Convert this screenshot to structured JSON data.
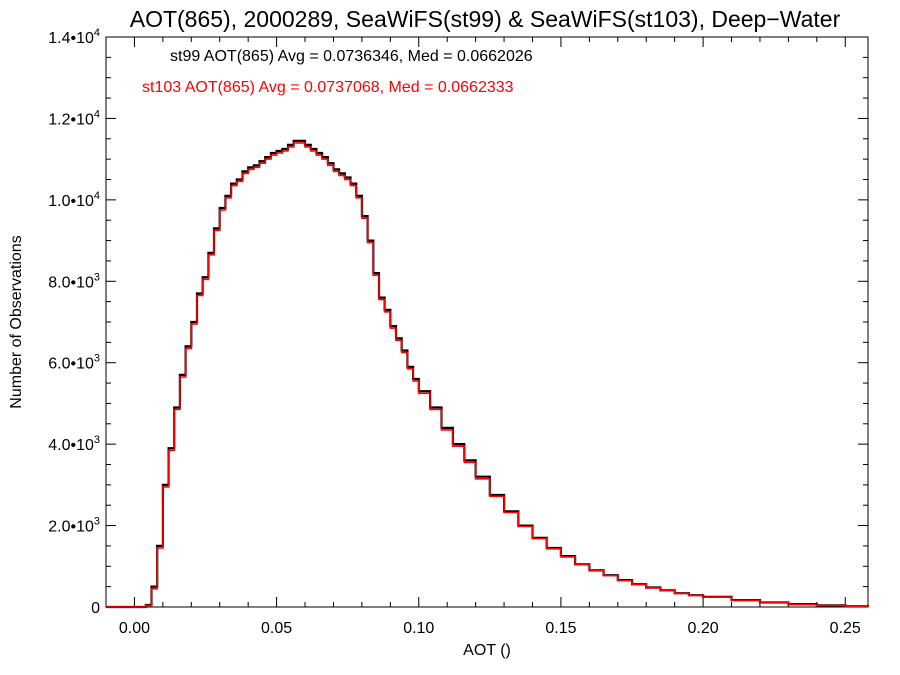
{
  "chart_data": {
    "type": "line",
    "title": "AOT(865), 2000289, SeaWiFS(st99) & SeaWiFS(st103), Deep−Water",
    "xlabel": "AOT ()",
    "ylabel": "Number of Observations",
    "xlim": [
      -0.01,
      0.258
    ],
    "ylim": [
      0,
      14000
    ],
    "grid": false,
    "step": true,
    "x_ticks": [
      {
        "value": 0.0,
        "label": "0.00"
      },
      {
        "value": 0.05,
        "label": "0.05"
      },
      {
        "value": 0.1,
        "label": "0.10"
      },
      {
        "value": 0.15,
        "label": "0.15"
      },
      {
        "value": 0.2,
        "label": "0.20"
      },
      {
        "value": 0.25,
        "label": "0.25"
      }
    ],
    "y_ticks": [
      {
        "value": 0,
        "mant": "0",
        "exp": ""
      },
      {
        "value": 2000,
        "mant": "2.0•10",
        "exp": "3"
      },
      {
        "value": 4000,
        "mant": "4.0•10",
        "exp": "3"
      },
      {
        "value": 6000,
        "mant": "6.0•10",
        "exp": "3"
      },
      {
        "value": 8000,
        "mant": "8.0•10",
        "exp": "3"
      },
      {
        "value": 10000,
        "mant": "1.0•10",
        "exp": "4"
      },
      {
        "value": 12000,
        "mant": "1.2•10",
        "exp": "4"
      },
      {
        "value": 14000,
        "mant": "1.4•10",
        "exp": "4"
      }
    ],
    "annotations": [
      {
        "text": "st99 AOT(865) Avg = 0.0736346, Med = 0.0662026",
        "color": "#000000"
      },
      {
        "text": "st103 AOT(865) Avg = 0.0737068, Med = 0.0662333",
        "color": "#ff0000"
      }
    ],
    "series": [
      {
        "color": "#000000",
        "x": [
          -0.01,
          0.0,
          0.004,
          0.006,
          0.008,
          0.01,
          0.012,
          0.014,
          0.016,
          0.018,
          0.02,
          0.022,
          0.024,
          0.026,
          0.028,
          0.03,
          0.032,
          0.034,
          0.036,
          0.038,
          0.04,
          0.042,
          0.044,
          0.046,
          0.048,
          0.05,
          0.052,
          0.054,
          0.056,
          0.058,
          0.06,
          0.062,
          0.064,
          0.066,
          0.068,
          0.07,
          0.072,
          0.074,
          0.076,
          0.078,
          0.08,
          0.082,
          0.084,
          0.086,
          0.088,
          0.09,
          0.092,
          0.094,
          0.096,
          0.098,
          0.1,
          0.104,
          0.108,
          0.112,
          0.116,
          0.12,
          0.125,
          0.13,
          0.135,
          0.14,
          0.145,
          0.15,
          0.155,
          0.16,
          0.165,
          0.17,
          0.175,
          0.18,
          0.185,
          0.19,
          0.195,
          0.2,
          0.21,
          0.22,
          0.23,
          0.24,
          0.25,
          0.258
        ],
        "y": [
          0,
          0,
          50,
          500,
          1500,
          3000,
          3900,
          4900,
          5700,
          6400,
          7000,
          7700,
          8100,
          8700,
          9300,
          9800,
          10100,
          10400,
          10500,
          10700,
          10800,
          10850,
          10950,
          11050,
          11150,
          11200,
          11250,
          11350,
          11450,
          11450,
          11350,
          11250,
          11150,
          11050,
          10900,
          10750,
          10650,
          10550,
          10400,
          10100,
          9600,
          9000,
          8200,
          7600,
          7300,
          6900,
          6600,
          6300,
          5900,
          5600,
          5300,
          4900,
          4400,
          4000,
          3600,
          3200,
          2750,
          2350,
          2000,
          1700,
          1450,
          1250,
          1050,
          900,
          780,
          660,
          560,
          480,
          410,
          340,
          290,
          250,
          170,
          110,
          70,
          40,
          20,
          10
        ]
      },
      {
        "color": "#ff0000",
        "x": [
          -0.01,
          0.0,
          0.004,
          0.006,
          0.008,
          0.01,
          0.012,
          0.014,
          0.016,
          0.018,
          0.02,
          0.022,
          0.024,
          0.026,
          0.028,
          0.03,
          0.032,
          0.034,
          0.036,
          0.038,
          0.04,
          0.042,
          0.044,
          0.046,
          0.048,
          0.05,
          0.052,
          0.054,
          0.056,
          0.058,
          0.06,
          0.062,
          0.064,
          0.066,
          0.068,
          0.07,
          0.072,
          0.074,
          0.076,
          0.078,
          0.08,
          0.082,
          0.084,
          0.086,
          0.088,
          0.09,
          0.092,
          0.094,
          0.096,
          0.098,
          0.1,
          0.104,
          0.108,
          0.112,
          0.116,
          0.12,
          0.125,
          0.13,
          0.135,
          0.14,
          0.145,
          0.15,
          0.155,
          0.16,
          0.165,
          0.17,
          0.175,
          0.18,
          0.185,
          0.19,
          0.195,
          0.2,
          0.21,
          0.22,
          0.23,
          0.24,
          0.25,
          0.258
        ],
        "y": [
          0,
          0,
          40,
          450,
          1450,
          2950,
          3850,
          4850,
          5650,
          6350,
          6950,
          7650,
          8050,
          8650,
          9250,
          9750,
          10050,
          10350,
          10450,
          10650,
          10750,
          10800,
          10900,
          11000,
          11100,
          11150,
          11200,
          11300,
          11400,
          11400,
          11300,
          11200,
          11100,
          11000,
          10850,
          10700,
          10600,
          10500,
          10350,
          10050,
          9550,
          8950,
          8150,
          7550,
          7250,
          6850,
          6550,
          6250,
          5850,
          5550,
          5250,
          4850,
          4350,
          3950,
          3550,
          3150,
          2720,
          2320,
          1980,
          1680,
          1430,
          1230,
          1040,
          890,
          770,
          650,
          550,
          470,
          400,
          335,
          285,
          245,
          165,
          105,
          65,
          35,
          18,
          8
        ]
      }
    ]
  }
}
